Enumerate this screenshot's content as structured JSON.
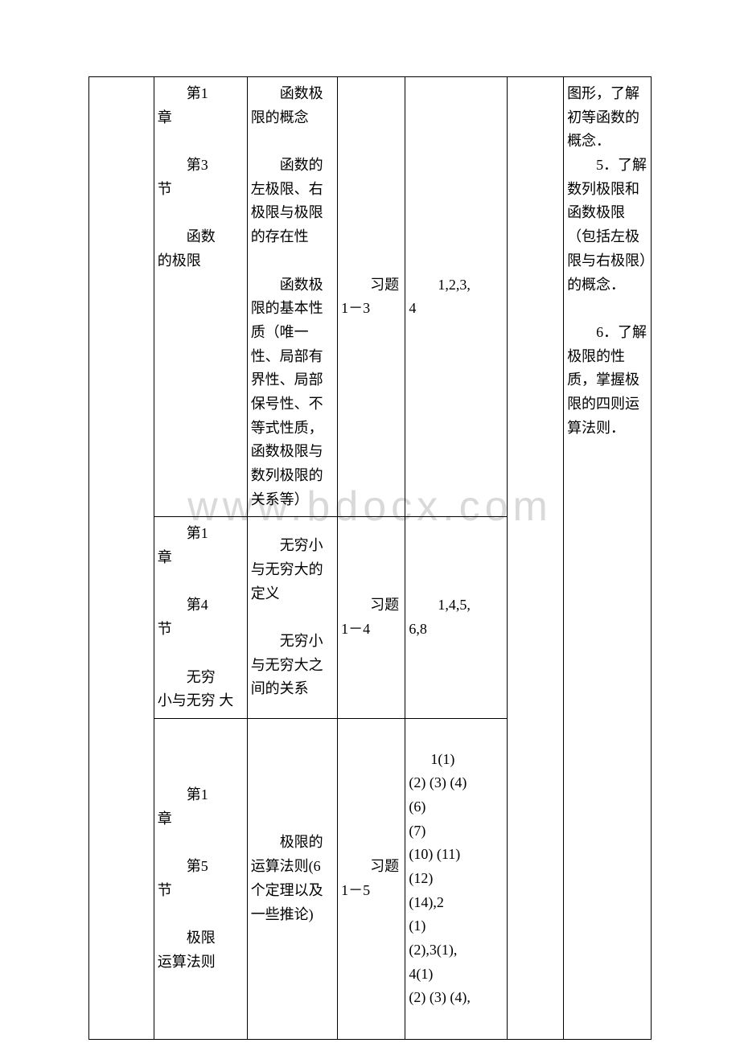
{
  "watermark": "www.bdocx.com",
  "table": {
    "border_color": "#000000",
    "background_color": "#ffffff",
    "text_color": "#000000",
    "font_size_pt": 14,
    "watermark_color": "#d9d9d9",
    "columns_width_pct": [
      11.5,
      16.5,
      16,
      12,
      18,
      10,
      15.5
    ],
    "rows": [
      {
        "c2_lines": [
          "第1",
          "章",
          "第3",
          "节",
          "函数",
          "的极限"
        ],
        "c3_paras": [
          "函数极限的概念",
          "函数的左极限、右极限与极限的存在性",
          "函数极限的基本性质（唯一性、局部有界性、局部保号性、不等式性质，函数极限与数列极限的关系等）"
        ],
        "c4_lines": [
          "习题",
          "1－3"
        ],
        "c5_lines": [
          "1,2,3,",
          "4"
        ],
        "c7_paras": [
          "图形，了解初等函数的概念．",
          "5．了解数列极限和函数极限（包括左极限与右极限）的概念．",
          "6．了解极限的性质，掌握极限的四则运算法则．"
        ]
      },
      {
        "c2_lines": [
          "第1",
          "章",
          "第4",
          "节",
          "无穷",
          "小与无穷",
          "大"
        ],
        "c3_paras": [
          "无穷小与无穷大的定义",
          "无穷小与无穷大之间的关系"
        ],
        "c4_lines": [
          "习题",
          "1－4"
        ],
        "c5_lines": [
          "1,4,5,",
          "6,8"
        ]
      },
      {
        "c2_lines": [
          "第1",
          "章",
          "第5",
          "节",
          "极限",
          "运算法则"
        ],
        "c3_paras": [
          "极限的运算法则(6 个定理以及一些推论)"
        ],
        "c4_lines": [
          "习题",
          "1－5"
        ],
        "c5_block": "1(1)\n(2) (3) (4)\n(6)\n(7)\n(10) (11)\n(12)\n(14),2\n(1)\n(2),3(1),\n4(1)\n(2) (3) (4),"
      }
    ]
  }
}
